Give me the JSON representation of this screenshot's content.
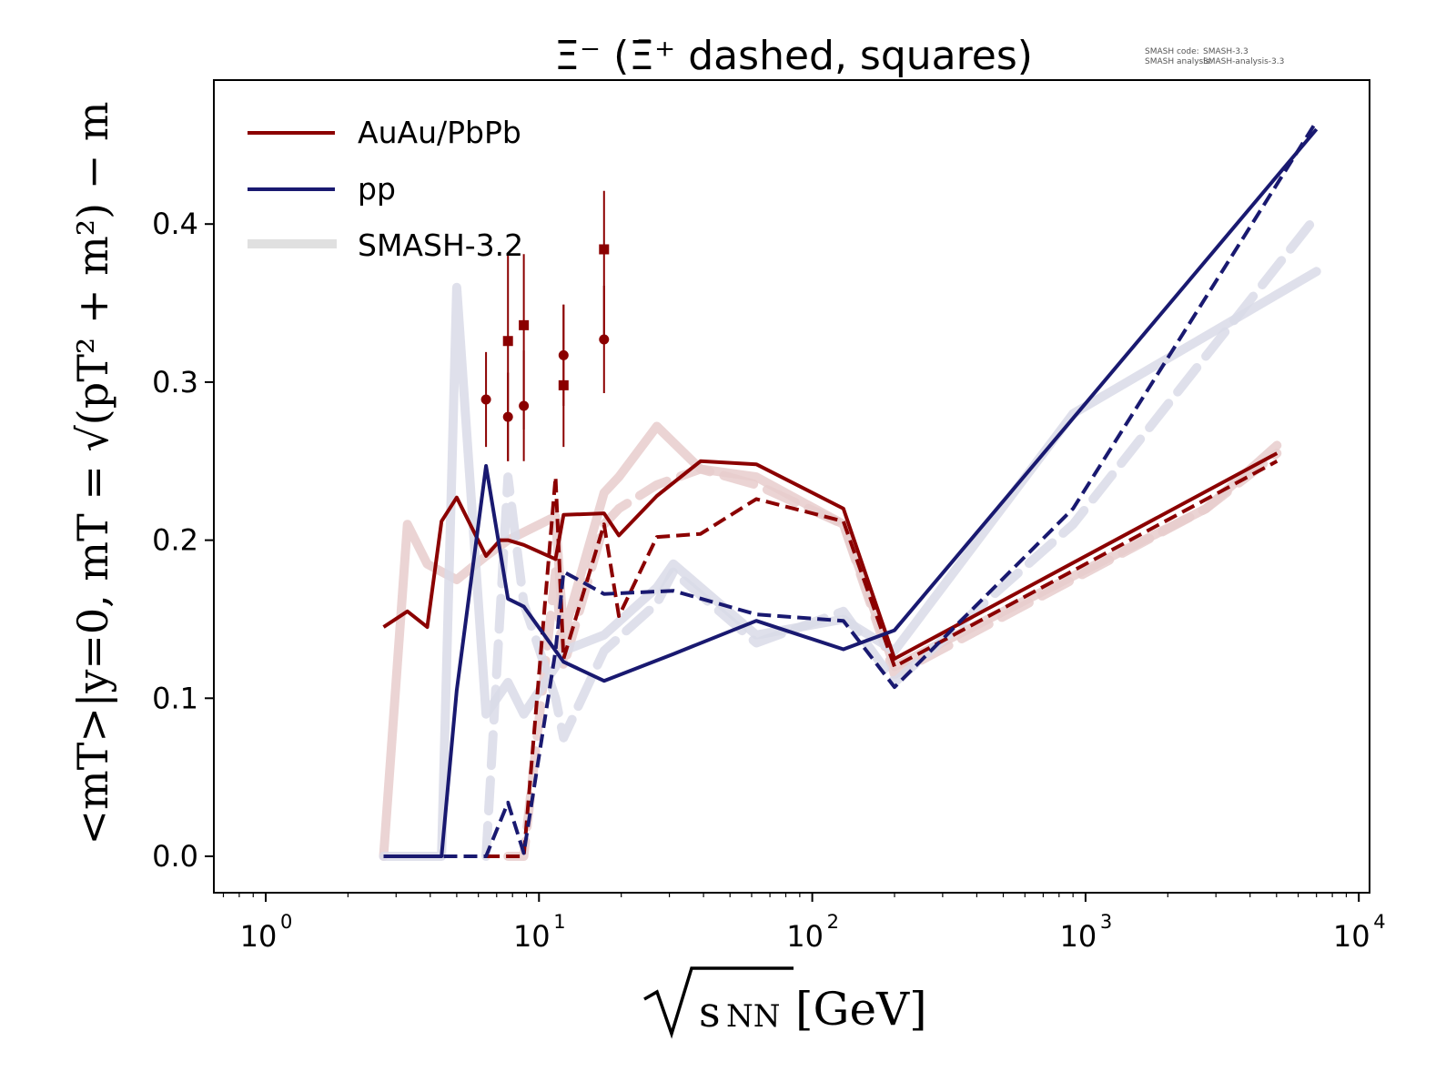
{
  "chart_data": {
    "type": "line",
    "title": "Ξ⁻ (Ξ̄⁺ dashed, squares)",
    "annotation": {
      "line1_label": "SMASH code:",
      "line1_value": "SMASH-3.3",
      "line2_label": "SMASH analysis:",
      "line2_value": "SMASH-analysis-3.3"
    },
    "xlabel": "√sNN [GeV]",
    "xlabel_parts": {
      "sqrt": "√",
      "main": "s",
      "sub": "NN",
      "unit": "[GeV]"
    },
    "ylabel": "<mT>|y=0, mT = √(pT² + m²) − m",
    "xscale": "log",
    "xlim": [
      0.68,
      11000
    ],
    "ylim": [
      -0.024,
      0.49
    ],
    "x_ticks": [
      {
        "value": 1,
        "base": "10",
        "exp": "0"
      },
      {
        "value": 10,
        "base": "10",
        "exp": "1"
      },
      {
        "value": 100,
        "base": "10",
        "exp": "2"
      },
      {
        "value": 1000,
        "base": "10",
        "exp": "3"
      },
      {
        "value": 10000,
        "base": "10",
        "exp": "4"
      }
    ],
    "y_ticks": [
      {
        "value": 0.0,
        "label": "0.0"
      },
      {
        "value": 0.1,
        "label": "0.1"
      },
      {
        "value": 0.2,
        "label": "0.2"
      },
      {
        "value": 0.3,
        "label": "0.3"
      },
      {
        "value": 0.4,
        "label": "0.4"
      }
    ],
    "grid": false,
    "legend": {
      "placement": "top-left",
      "entries": [
        {
          "label": "AuAu/PbPb",
          "color": "#8b0000",
          "style": "solid"
        },
        {
          "label": "pp",
          "color": "#191970",
          "style": "solid"
        },
        {
          "label": "SMASH-3.2",
          "color": "#dcdcdc",
          "style": "thick-faded"
        }
      ]
    },
    "colors": {
      "auau": "#8b0000",
      "pp": "#191970",
      "auau_faded": "#e8cdcd",
      "pp_faded": "#d9dae8"
    },
    "series": [
      {
        "name": "SMASH-3.2 AuAu/PbPb Ξ⁻",
        "group": "auau",
        "dashed": false,
        "faded": true,
        "x": [
          2.7,
          3.3,
          3.9,
          4.4,
          5.0,
          6.4,
          7.7,
          8.8,
          11.5,
          12.3,
          17.3,
          19.6,
          27,
          39,
          62.4,
          130,
          200,
          2760,
          5020
        ],
        "y": [
          0.0,
          0.21,
          0.185,
          0.18,
          0.175,
          0.19,
          0.2,
          0.205,
          0.215,
          0.14,
          0.23,
          0.24,
          0.272,
          0.245,
          0.24,
          0.21,
          0.12,
          0.22,
          0.26
        ]
      },
      {
        "name": "SMASH-3.2 AuAu/PbPb Ξ̄⁺",
        "group": "auau",
        "dashed": true,
        "faded": true,
        "x": [
          7.7,
          8.8,
          11.5,
          12.3,
          17.3,
          19.6,
          27,
          39,
          62.4,
          130,
          200,
          2760,
          5020
        ],
        "y": [
          0.0,
          0.0,
          0.18,
          0.12,
          0.21,
          0.22,
          0.235,
          0.245,
          0.235,
          0.21,
          0.115,
          0.22,
          0.255
        ]
      },
      {
        "name": "SMASH-3.2 pp Ξ⁻",
        "group": "pp",
        "dashed": false,
        "faded": true,
        "x": [
          2.7,
          4.4,
          5.0,
          6.4,
          7.7,
          8.8,
          11.5,
          12.3,
          17.3,
          27,
          31,
          62.4,
          130,
          200,
          900,
          7000
        ],
        "y": [
          0.0,
          0.0,
          0.36,
          0.09,
          0.11,
          0.09,
          0.12,
          0.13,
          0.14,
          0.17,
          0.185,
          0.14,
          0.15,
          0.13,
          0.28,
          0.37
        ]
      },
      {
        "name": "SMASH-3.2 pp Ξ̄⁺",
        "group": "pp",
        "dashed": true,
        "faded": true,
        "x": [
          6.4,
          7.7,
          8.8,
          11.5,
          12.3,
          17.3,
          27,
          31,
          62.4,
          130,
          200,
          900,
          7000
        ],
        "y": [
          0.0,
          0.24,
          0.16,
          0.1,
          0.075,
          0.13,
          0.16,
          0.18,
          0.135,
          0.155,
          0.11,
          0.21,
          0.405
        ]
      },
      {
        "name": "AuAu/PbPb Ξ⁻",
        "group": "auau",
        "dashed": false,
        "faded": false,
        "x": [
          2.7,
          3.3,
          3.9,
          4.4,
          5.0,
          6.4,
          7.2,
          7.7,
          8.8,
          11.5,
          12.3,
          17.3,
          19.6,
          27,
          39,
          62.4,
          130,
          200,
          5020
        ],
        "y": [
          0.145,
          0.155,
          0.145,
          0.212,
          0.227,
          0.19,
          0.2,
          0.2,
          0.197,
          0.188,
          0.216,
          0.217,
          0.203,
          0.228,
          0.25,
          0.248,
          0.22,
          0.125,
          0.255
        ]
      },
      {
        "name": "AuAu/PbPb Ξ̄⁺",
        "group": "auau",
        "dashed": true,
        "faded": false,
        "x": [
          6.4,
          7.7,
          8.8,
          11.5,
          12.3,
          17.3,
          19.6,
          27,
          39,
          62.4,
          130,
          200,
          5020
        ],
        "y": [
          0.0,
          0.0,
          0.0,
          0.24,
          0.125,
          0.21,
          0.152,
          0.202,
          0.204,
          0.226,
          0.212,
          0.12,
          0.25
        ]
      },
      {
        "name": "pp Ξ⁻",
        "group": "pp",
        "dashed": false,
        "faded": false,
        "x": [
          2.7,
          4.4,
          5.0,
          6.4,
          7.7,
          8.8,
          12.3,
          17.3,
          31,
          62.4,
          130,
          200,
          7000
        ],
        "y": [
          0.0,
          0.0,
          0.105,
          0.247,
          0.163,
          0.158,
          0.123,
          0.111,
          0.128,
          0.149,
          0.131,
          0.143,
          0.46
        ]
      },
      {
        "name": "pp Ξ̄⁺",
        "group": "pp",
        "dashed": true,
        "faded": false,
        "x": [
          2.7,
          4.4,
          6.4,
          7.7,
          8.8,
          11.5,
          12.3,
          17.3,
          31,
          62.4,
          130,
          200,
          900,
          7000
        ],
        "y": [
          0.0,
          0.0,
          0.0,
          0.034,
          0.002,
          0.13,
          0.18,
          0.166,
          0.168,
          0.153,
          0.149,
          0.107,
          0.22,
          0.465
        ]
      }
    ],
    "experimental_data": [
      {
        "name": "Ξ⁻ data",
        "marker": "circle",
        "color": "#8b0000",
        "points": [
          {
            "x": 6.4,
            "y": 0.289,
            "yerr_low": 0.03,
            "yerr_high": 0.03
          },
          {
            "x": 7.7,
            "y": 0.278,
            "yerr_low": 0.028,
            "yerr_high": 0.028
          },
          {
            "x": 8.8,
            "y": 0.285,
            "yerr_low": 0.035,
            "yerr_high": 0.035
          },
          {
            "x": 12.3,
            "y": 0.317,
            "yerr_low": 0.032,
            "yerr_high": 0.032
          },
          {
            "x": 17.3,
            "y": 0.327,
            "yerr_low": 0.034,
            "yerr_high": 0.034
          }
        ]
      },
      {
        "name": "Ξ̄⁺ data",
        "marker": "square",
        "color": "#8b0000",
        "points": [
          {
            "x": 7.7,
            "y": 0.326,
            "yerr_low": 0.076,
            "yerr_high": 0.056
          },
          {
            "x": 8.8,
            "y": 0.336,
            "yerr_low": 0.066,
            "yerr_high": 0.045
          },
          {
            "x": 12.3,
            "y": 0.298,
            "yerr_low": 0.039,
            "yerr_high": 0.051
          },
          {
            "x": 17.3,
            "y": 0.384,
            "yerr_low": 0.056,
            "yerr_high": 0.037
          }
        ]
      }
    ]
  }
}
